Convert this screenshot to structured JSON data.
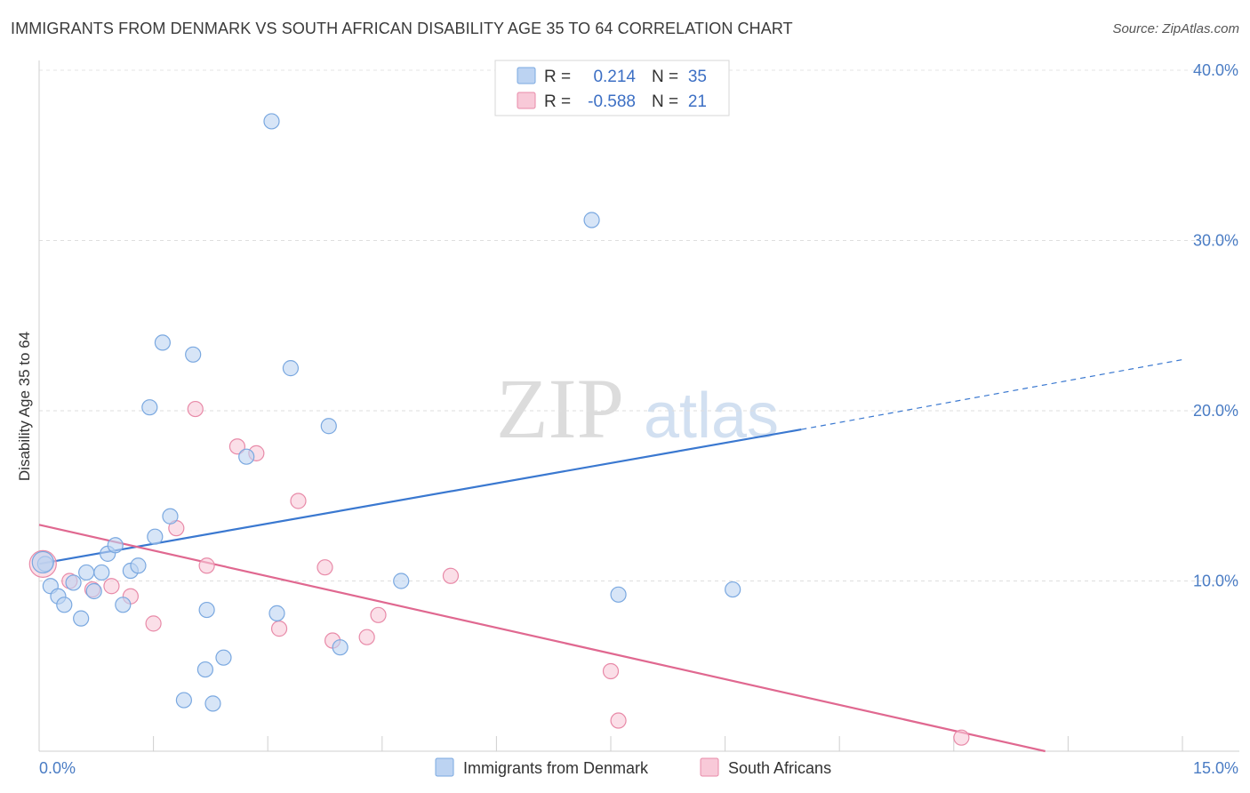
{
  "title": "IMMIGRANTS FROM DENMARK VS SOUTH AFRICAN DISABILITY AGE 35 TO 64 CORRELATION CHART",
  "source": "Source: ZipAtlas.com",
  "watermark": {
    "zip": "ZIP",
    "atlas": "atlas"
  },
  "legend_stats": [
    {
      "r_label": "R =",
      "r_value": "0.214",
      "n_label": "N =",
      "n_value": "35",
      "color": "#7aa8e0",
      "fill": "#bcd3f2"
    },
    {
      "r_label": "R =",
      "r_value": "-0.588",
      "n_label": "N =",
      "n_value": "21",
      "color": "#e88aa8",
      "fill": "#f8c9d8"
    }
  ],
  "chart_data": {
    "type": "scatter",
    "title": "IMMIGRANTS FROM DENMARK VS SOUTH AFRICAN DISABILITY AGE 35 TO 64 CORRELATION CHART",
    "xlabel": "",
    "ylabel": "Disability Age 35 to 64",
    "xlim": [
      0,
      15
    ],
    "ylim": [
      0,
      40
    ],
    "x_tick_labels": [
      "0.0%",
      "15.0%"
    ],
    "y_ticks": [
      10,
      20,
      30,
      40
    ],
    "y_tick_labels": [
      "10.0%",
      "20.0%",
      "30.0%",
      "40.0%"
    ],
    "grid": true,
    "legend_position": "bottom",
    "series": [
      {
        "name": "Immigrants from Denmark",
        "color": "#7aa8e0",
        "fill": "#bcd3f2",
        "trend": {
          "x0": 0,
          "y0": 11.0,
          "x1": 10.0,
          "y1": 18.9,
          "x_dash_end": 15.0,
          "y_dash_end": 23.0,
          "color": "#3a78d0"
        },
        "points": [
          [
            0.08,
            11.0
          ],
          [
            0.15,
            9.7
          ],
          [
            0.25,
            9.1
          ],
          [
            0.33,
            8.6
          ],
          [
            0.45,
            9.9
          ],
          [
            0.55,
            7.8
          ],
          [
            0.62,
            10.5
          ],
          [
            0.72,
            9.4
          ],
          [
            0.82,
            10.5
          ],
          [
            0.9,
            11.6
          ],
          [
            1.0,
            12.1
          ],
          [
            1.1,
            8.6
          ],
          [
            1.2,
            10.6
          ],
          [
            1.3,
            10.9
          ],
          [
            1.45,
            20.2
          ],
          [
            1.52,
            12.6
          ],
          [
            1.62,
            24.0
          ],
          [
            1.72,
            13.8
          ],
          [
            1.9,
            3.0
          ],
          [
            2.02,
            23.3
          ],
          [
            2.18,
            4.8
          ],
          [
            2.2,
            8.3
          ],
          [
            2.28,
            2.8
          ],
          [
            2.42,
            5.5
          ],
          [
            2.72,
            17.3
          ],
          [
            3.05,
            37.0
          ],
          [
            3.12,
            8.1
          ],
          [
            3.3,
            22.5
          ],
          [
            3.8,
            19.1
          ],
          [
            3.95,
            6.1
          ],
          [
            4.75,
            10.0
          ],
          [
            7.25,
            31.2
          ],
          [
            7.6,
            9.2
          ],
          [
            9.1,
            9.5
          ],
          [
            0.05,
            11.1
          ]
        ]
      },
      {
        "name": "South Africans",
        "color": "#e88aa8",
        "fill": "#f8c9d8",
        "trend": {
          "x0": 0,
          "y0": 13.3,
          "x1": 13.2,
          "y1": 0,
          "color": "#e06890"
        },
        "points": [
          [
            0.05,
            11.0
          ],
          [
            0.4,
            10.0
          ],
          [
            0.7,
            9.5
          ],
          [
            0.95,
            9.7
          ],
          [
            1.2,
            9.1
          ],
          [
            1.5,
            7.5
          ],
          [
            1.8,
            13.1
          ],
          [
            2.05,
            20.1
          ],
          [
            2.2,
            10.9
          ],
          [
            2.6,
            17.9
          ],
          [
            2.85,
            17.5
          ],
          [
            3.15,
            7.2
          ],
          [
            3.4,
            14.7
          ],
          [
            3.75,
            10.8
          ],
          [
            3.85,
            6.5
          ],
          [
            4.3,
            6.7
          ],
          [
            4.45,
            8.0
          ],
          [
            5.4,
            10.3
          ],
          [
            7.5,
            4.7
          ],
          [
            7.6,
            1.8
          ],
          [
            12.1,
            0.8
          ]
        ]
      }
    ]
  }
}
